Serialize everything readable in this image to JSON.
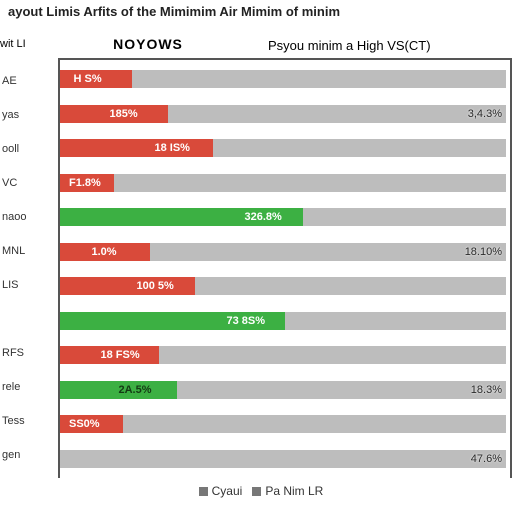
{
  "title": "ayout Limis Arfits of the Mimimim Air Mimim of minim",
  "sub_left": "wit LI",
  "sub_center": "NOYOWS",
  "sub_right": "Psyou minim a High VS(CT)",
  "colors": {
    "track": "#bdbdbd",
    "red": "#d94a3a",
    "green": "#3cb043",
    "border": "#555555",
    "text_light": "#ffffff",
    "text_dark": "#1e3a1e"
  },
  "legend": [
    {
      "swatch": "#777777",
      "label": "Cyaui"
    },
    {
      "swatch": "#777777",
      "label": "Pa Nim LR"
    }
  ],
  "rows": [
    {
      "ylabel": "AE",
      "bar_pct": 16,
      "bar_color": "#d94a3a",
      "bar_text": "H S%",
      "bar_text_color": "#ffffff",
      "right": ""
    },
    {
      "ylabel": "yas",
      "bar_pct": 24,
      "bar_color": "#d94a3a",
      "bar_text": "185%",
      "bar_text_color": "#ffffff",
      "right": "3,4.3%"
    },
    {
      "ylabel": "ooll",
      "bar_pct": 34,
      "bar_color": "#d94a3a",
      "bar_text": "18 IS%",
      "bar_text_color": "#ffffff",
      "right": ""
    },
    {
      "ylabel": "VC",
      "bar_pct": 12,
      "bar_color": "#d94a3a",
      "bar_text": "F1.8%",
      "bar_text_color": "#ffffff",
      "right": ""
    },
    {
      "ylabel": "naoo",
      "bar_pct": 54,
      "bar_color": "#3cb043",
      "bar_text": "326.8%",
      "bar_text_color": "#ffffff",
      "right": ""
    },
    {
      "ylabel": "MNL",
      "bar_pct": 20,
      "bar_color": "#d94a3a",
      "bar_text": "1.0%",
      "bar_text_color": "#ffffff",
      "right": "18.10%"
    },
    {
      "ylabel": "LIS",
      "bar_pct": 30,
      "bar_color": "#d94a3a",
      "bar_text": "100 5%",
      "bar_text_color": "#ffffff",
      "right": ""
    },
    {
      "ylabel": "",
      "bar_pct": 50,
      "bar_color": "#3cb043",
      "bar_text": "73 8S%",
      "bar_text_color": "#ffffff",
      "right": ""
    },
    {
      "ylabel": "RFS",
      "bar_pct": 22,
      "bar_color": "#d94a3a",
      "bar_text": "18 FS%",
      "bar_text_color": "#ffffff",
      "right": ""
    },
    {
      "ylabel": "rele",
      "bar_pct": 26,
      "bar_color": "#3cb043",
      "bar_text": "2A.5%",
      "bar_text_color": "#143a14",
      "right": "18.3%"
    },
    {
      "ylabel": "Tess",
      "bar_pct": 14,
      "bar_color": "#d94a3a",
      "bar_text": "SS0%",
      "bar_text_color": "#ffffff",
      "right": ""
    },
    {
      "ylabel": "gen",
      "bar_pct": 0,
      "bar_color": "#bdbdbd",
      "bar_text": "",
      "bar_text_color": "#ffffff",
      "right": "47.6%"
    }
  ]
}
